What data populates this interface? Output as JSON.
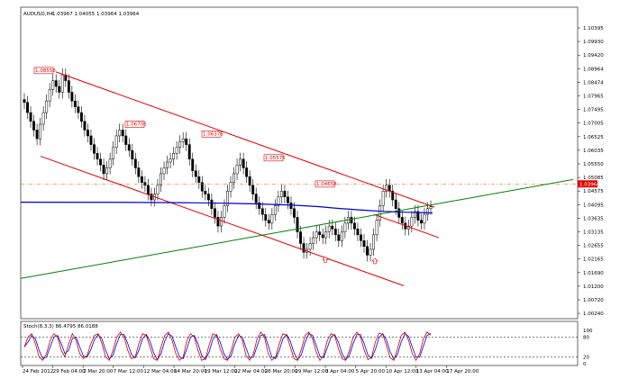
{
  "header": {
    "symbol": "AUDUSD,H4",
    "ohlc": "1.03967 1.04055 1.03964 1.03964"
  },
  "indicator": {
    "title": "Stoch(8,3,3) 86.4795 86.0188",
    "levels": [
      "100",
      "80",
      "20",
      "0"
    ]
  },
  "colors": {
    "channel": "#e00000",
    "trend": "#008000",
    "ma": "#0000cc",
    "stochMain": "#cc0000",
    "stochSignal": "#0000cc"
  },
  "annotations": [
    {
      "text": "1.08558"
    },
    {
      "text": "1.06705"
    },
    {
      "text": "1.06376"
    },
    {
      "text": "1.05575"
    },
    {
      "text": "1.04658"
    }
  ],
  "current_price": "1.03964",
  "chart_data": {
    "type": "candlestick",
    "title": "AUDUSD,H4",
    "y_ticks": [
      "1.10395",
      "1.09930",
      "1.09420",
      "1.08964",
      "1.08474",
      "1.07965",
      "1.07495",
      "1.07005",
      "1.06525",
      "1.06035",
      "1.05550",
      "1.05085",
      "1.04575",
      "1.04095",
      "1.03635",
      "1.03135",
      "1.02655",
      "1.02165",
      "1.01690",
      "1.01200",
      "1.00720",
      "1.00240"
    ],
    "x_ticks": [
      "24 Feb 2012",
      "29 Feb 04:00",
      "2 Mar 20:00",
      "7 Mar 12:00",
      "12 Mar 04:00",
      "14 Mar 20:00",
      "19 Mar 12:00",
      "22 Mar 04:00",
      "26 Mar 20:00",
      "29 Mar 12:00",
      "3 Apr 04:00",
      "5 Apr 20:00",
      "10 Apr 12:00",
      "13 Apr 04:00",
      "17 Apr 20:00"
    ],
    "ylim": [
      1.0024,
      1.1039
    ],
    "closes": [
      1.0755,
      1.072,
      1.069,
      1.066,
      1.063,
      1.068,
      1.072,
      1.076,
      1.08,
      1.083,
      1.081,
      1.079,
      1.085,
      1.083,
      1.079,
      1.076,
      1.074,
      1.072,
      1.069,
      1.066,
      1.064,
      1.061,
      1.058,
      1.056,
      1.054,
      1.051,
      1.053,
      1.056,
      1.06,
      1.064,
      1.066,
      1.064,
      1.061,
      1.059,
      1.056,
      1.053,
      1.05,
      1.048,
      1.047,
      1.044,
      1.042,
      1.044,
      1.047,
      1.051,
      1.053,
      1.055,
      1.056,
      1.058,
      1.06,
      1.062,
      1.063,
      1.061,
      1.056,
      1.052,
      1.05,
      1.048,
      1.045,
      1.044,
      1.042,
      1.039,
      1.036,
      1.033,
      1.036,
      1.04,
      1.045,
      1.048,
      1.051,
      1.054,
      1.056,
      1.053,
      1.05,
      1.047,
      1.044,
      1.041,
      1.039,
      1.037,
      1.035,
      1.034,
      1.037,
      1.04,
      1.043,
      1.045,
      1.043,
      1.041,
      1.039,
      1.036,
      1.031,
      1.027,
      1.024,
      1.025,
      1.027,
      1.029,
      1.031,
      1.03,
      1.029,
      1.031,
      1.033,
      1.032,
      1.03,
      1.028,
      1.031,
      1.034,
      1.036,
      1.034,
      1.032,
      1.03,
      1.028,
      1.026,
      1.023,
      1.025,
      1.03,
      1.035,
      1.04,
      1.045,
      1.047,
      1.045,
      1.042,
      1.039,
      1.036,
      1.034,
      1.032,
      1.033,
      1.036,
      1.038,
      1.035,
      1.034,
      1.037,
      1.039,
      1.0396
    ],
    "stochastic": [
      50,
      80,
      90,
      60,
      20,
      10,
      30,
      70,
      90,
      80,
      40,
      20,
      60,
      90,
      70,
      30,
      15,
      25,
      60,
      85,
      90,
      60,
      20,
      10,
      40,
      80,
      95,
      80,
      40,
      15,
      20,
      60,
      90,
      85,
      50,
      15,
      10,
      50,
      85,
      95,
      70,
      30,
      10,
      20,
      70,
      90,
      80,
      40,
      10,
      15,
      55,
      90,
      85,
      45,
      15,
      10,
      40,
      80,
      90,
      70,
      25,
      10,
      30,
      75,
      95,
      80,
      30,
      10,
      20,
      60,
      90,
      85,
      50,
      15,
      10,
      45,
      85,
      95,
      75,
      35,
      10,
      25,
      70,
      90,
      85,
      45,
      15,
      10,
      40,
      80,
      95,
      80,
      40,
      12,
      20,
      65,
      92,
      88,
      55,
      18,
      10,
      45,
      85,
      95,
      70,
      30,
      10,
      30,
      75,
      95,
      86
    ]
  }
}
